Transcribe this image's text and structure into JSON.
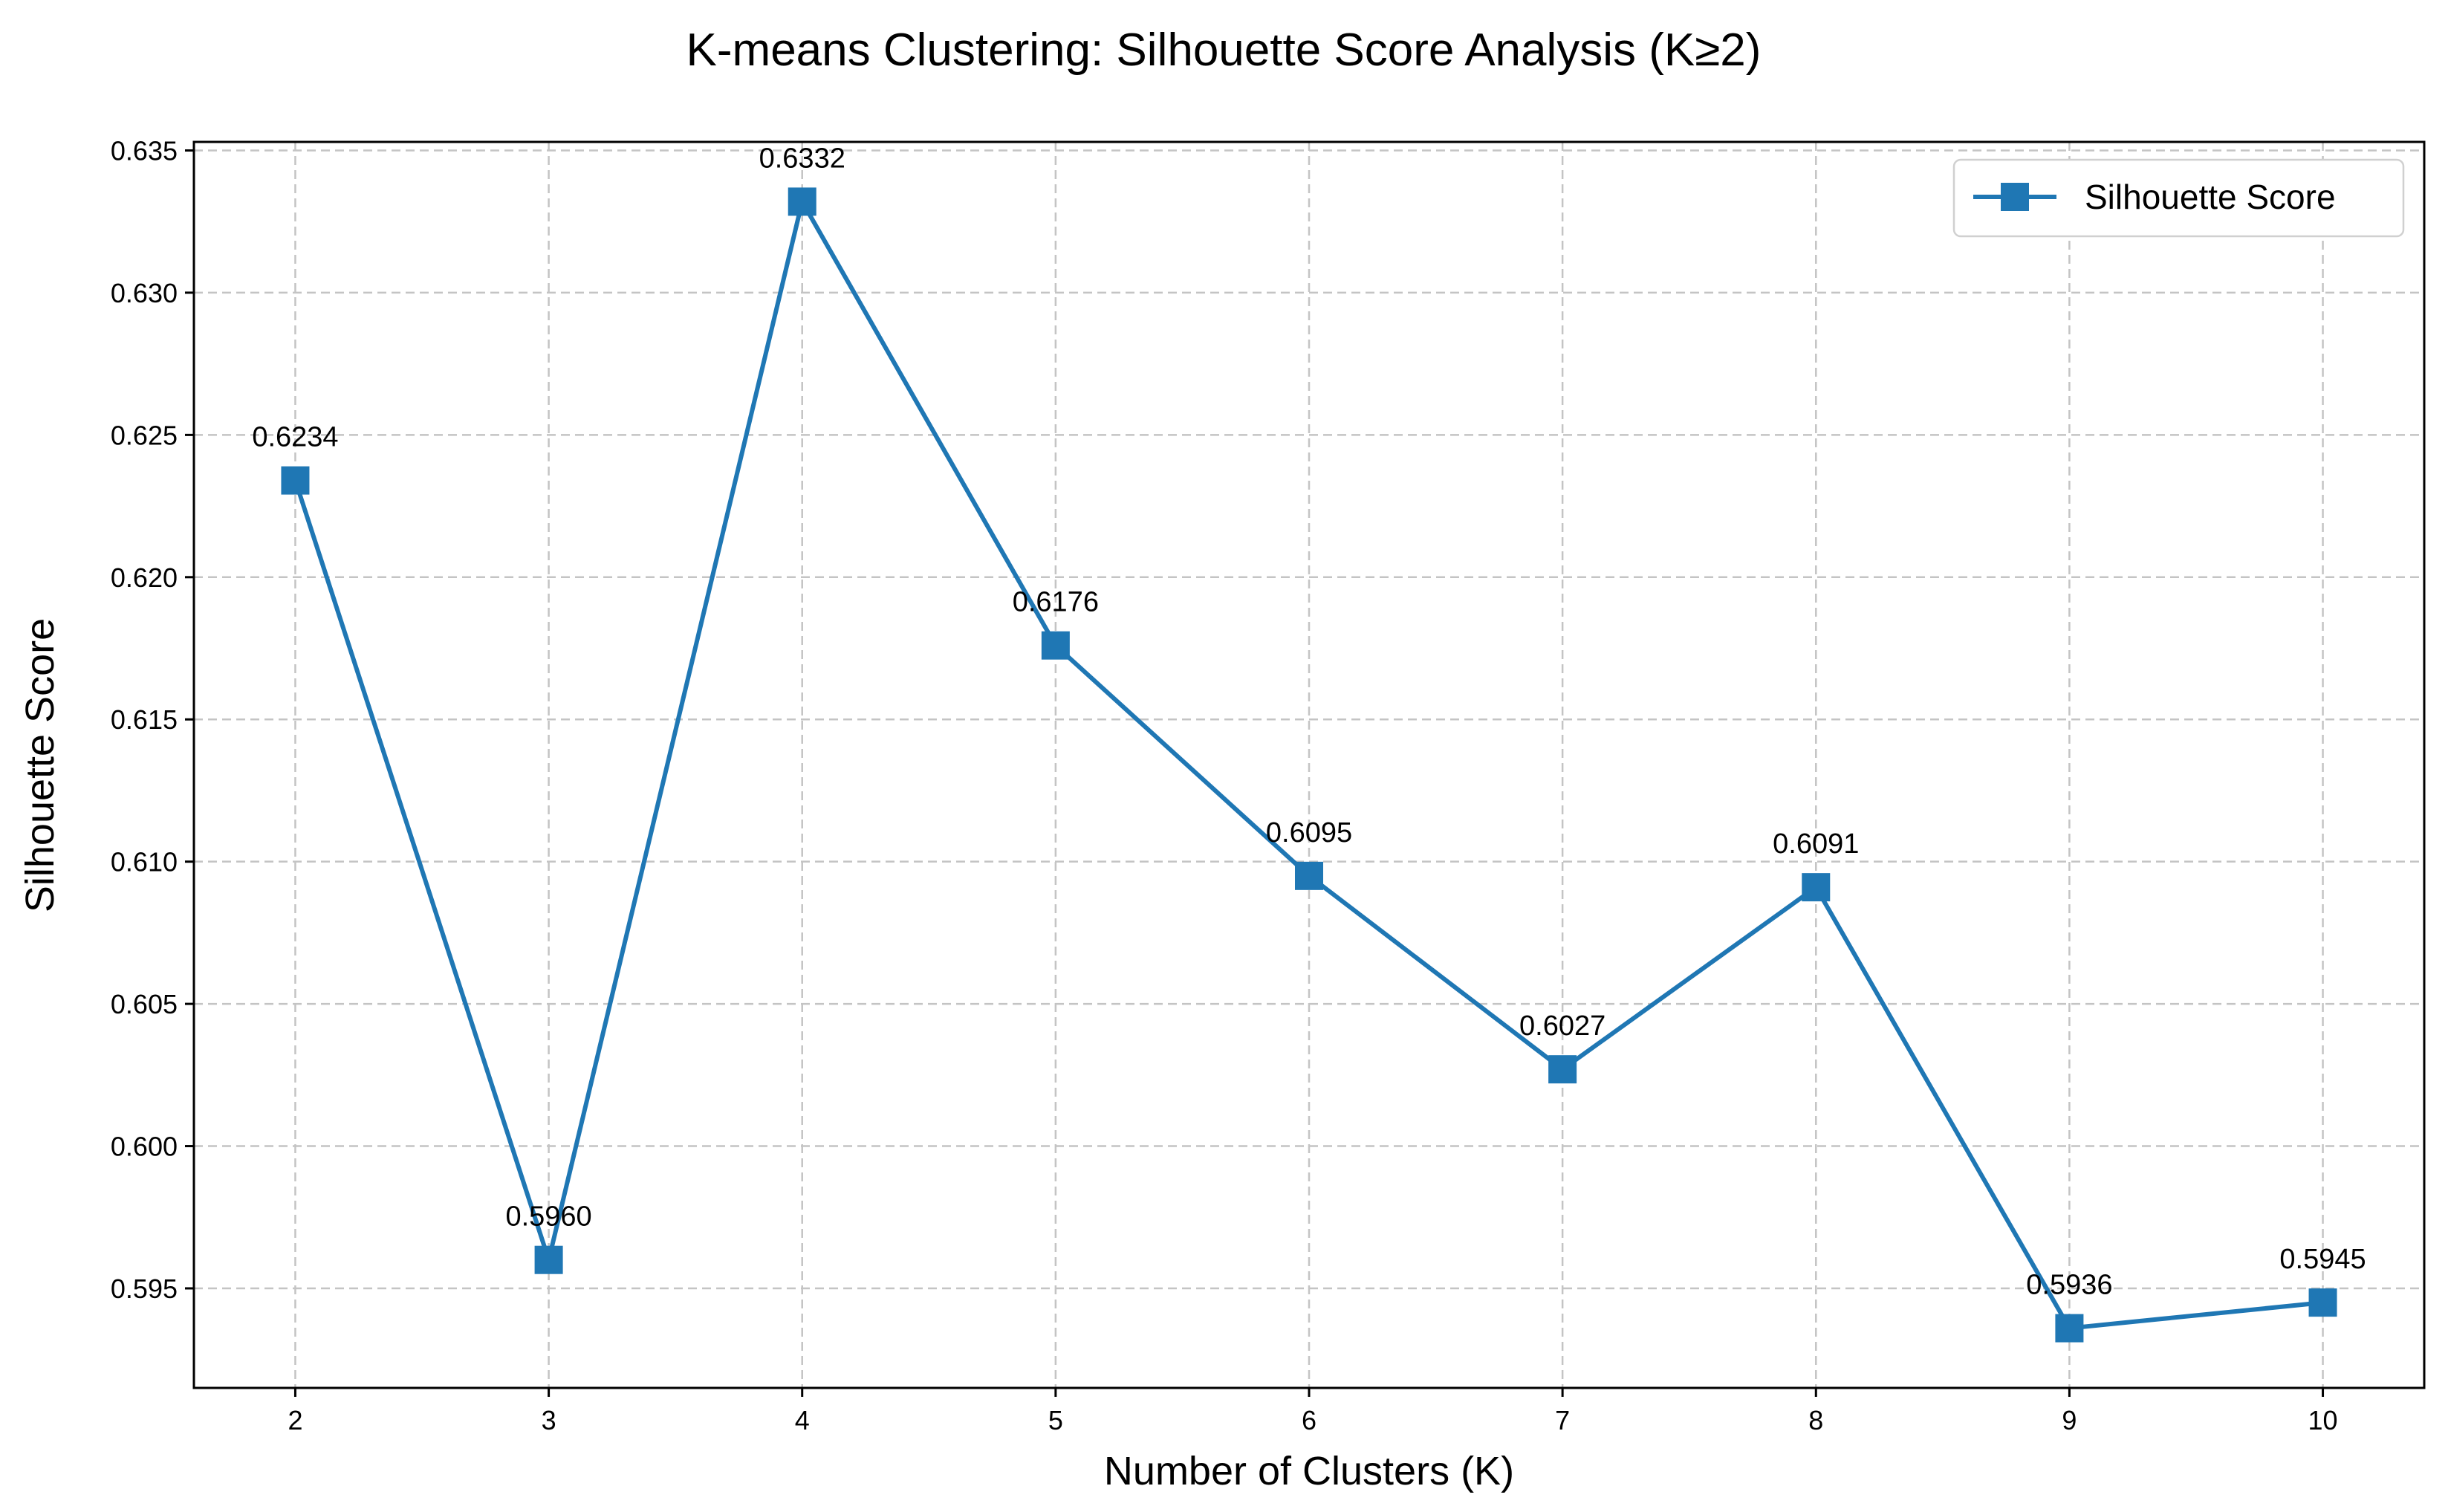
{
  "chart_data": {
    "type": "line",
    "title": "K-means Clustering: Silhouette Score Analysis (K≥2)",
    "xlabel": "Number of Clusters (K)",
    "ylabel": "Silhouette Score",
    "x": [
      2,
      3,
      4,
      5,
      6,
      7,
      8,
      9,
      10
    ],
    "xticks": [
      "2",
      "3",
      "4",
      "5",
      "6",
      "7",
      "8",
      "9",
      "10"
    ],
    "xlim": [
      1.6,
      10.4
    ],
    "ylim": [
      0.5915,
      0.6353
    ],
    "yticks": [
      "0.595",
      "0.600",
      "0.605",
      "0.610",
      "0.615",
      "0.620",
      "0.625",
      "0.630",
      "0.635"
    ],
    "ytick_values": [
      0.595,
      0.6,
      0.605,
      0.61,
      0.615,
      0.62,
      0.625,
      0.63,
      0.635
    ],
    "series": [
      {
        "name": "Silhouette Score",
        "color": "#1f77b4",
        "marker": "square",
        "values": [
          0.6234,
          0.596,
          0.6332,
          0.6176,
          0.6095,
          0.6027,
          0.6091,
          0.5936,
          0.5945
        ],
        "data_labels": [
          "0.6234",
          "0.5960",
          "0.6332",
          "0.6176",
          "0.6095",
          "0.6027",
          "0.6091",
          "0.5936",
          "0.5945"
        ]
      }
    ],
    "grid": true,
    "legend_position": "upper right"
  }
}
